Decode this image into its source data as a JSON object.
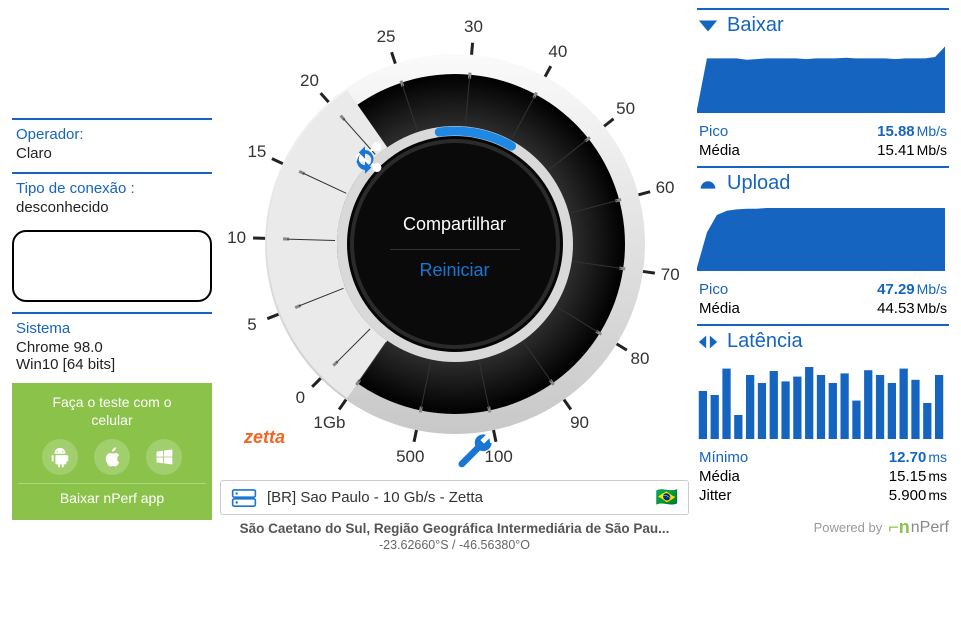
{
  "colors": {
    "primary": "#1565c0",
    "accent": "#1976d2",
    "promo_bg": "#8bc34a",
    "gauge_outer": "#e8e8e8",
    "gauge_ring_dark": "#1a1a1a",
    "gauge_ring_light": "#cfcfcf",
    "gauge_notch": "#e0e0e0",
    "arc_progress": "#1e88e5",
    "sponsor": "#f26522",
    "text": "#222222"
  },
  "left": {
    "operator_label": "Operador:",
    "operator_value": "Claro",
    "conn_label": "Tipo de conexão :",
    "conn_value": "desconhecido",
    "system_label": "Sistema",
    "system_value1": "Chrome 98.0",
    "system_value2": "Win10 [64 bits]",
    "promo_line1": "Faça o teste com o",
    "promo_line2": "celular",
    "promo_btn": "Baixar nPerf app"
  },
  "gauge": {
    "ticks": [
      {
        "label": "0",
        "angle": 225
      },
      {
        "label": "5",
        "angle": 201.7
      },
      {
        "label": "10",
        "angle": 178.3
      },
      {
        "label": "15",
        "angle": 155
      },
      {
        "label": "20",
        "angle": 131.7
      },
      {
        "label": "25",
        "angle": 108.3
      },
      {
        "label": "30",
        "angle": 85
      },
      {
        "label": "40",
        "angle": 61.7
      },
      {
        "label": "50",
        "angle": 38.3
      },
      {
        "label": "60",
        "angle": 15
      },
      {
        "label": "70",
        "angle": -8.3
      },
      {
        "label": "80",
        "angle": -31.7
      },
      {
        "label": "90",
        "angle": -55
      },
      {
        "label": "100",
        "angle": -78.3
      },
      {
        "label": "500",
        "angle": -101.7
      },
      {
        "label": "1Gb",
        "angle": -125
      }
    ],
    "progress_start_deg": 98,
    "progress_end_deg": 60,
    "share_label": "Compartilhar",
    "restart_label": "Reiniciar"
  },
  "sponsor": "zetta",
  "server": {
    "text": "[BR] Sao Paulo - 10 Gb/s - Zetta",
    "flag": "🇧🇷"
  },
  "location": "São Caetano do Sul, Região Geográfica Intermediária de São Pau...",
  "coords": "-23.62660°S / -46.56380°O",
  "download": {
    "title": "Baixar",
    "pico_label": "Pico",
    "pico_value": "15.88",
    "media_label": "Média",
    "media_value": "15.41",
    "unit": "Mb/s",
    "series": [
      5,
      78,
      78,
      78,
      78,
      76,
      77,
      78,
      78,
      78,
      78,
      77,
      78,
      78,
      78,
      79,
      78,
      78,
      78,
      78,
      77,
      78,
      78,
      78,
      80,
      95
    ]
  },
  "upload": {
    "title": "Upload",
    "pico_label": "Pico",
    "pico_value": "47.29",
    "media_label": "Média",
    "media_value": "44.53",
    "unit": "Mb/s",
    "series": [
      5,
      55,
      80,
      86,
      88,
      89,
      89,
      90,
      90,
      90,
      90,
      90,
      90,
      90,
      90,
      90,
      90,
      90,
      90,
      90,
      90,
      90,
      90,
      90,
      90,
      90
    ]
  },
  "latency": {
    "title": "Latência",
    "min_label": "Mínimo",
    "min_value": "12.70",
    "media_label": "Média",
    "media_value": "15.15",
    "jitter_label": "Jitter",
    "jitter_value": "5.900",
    "unit": "ms",
    "bars": [
      60,
      55,
      88,
      30,
      80,
      70,
      85,
      72,
      78,
      90,
      80,
      70,
      82,
      48,
      86,
      80,
      70,
      88,
      74,
      45,
      80
    ]
  },
  "powered": "Powered by",
  "brand": "nPerf"
}
